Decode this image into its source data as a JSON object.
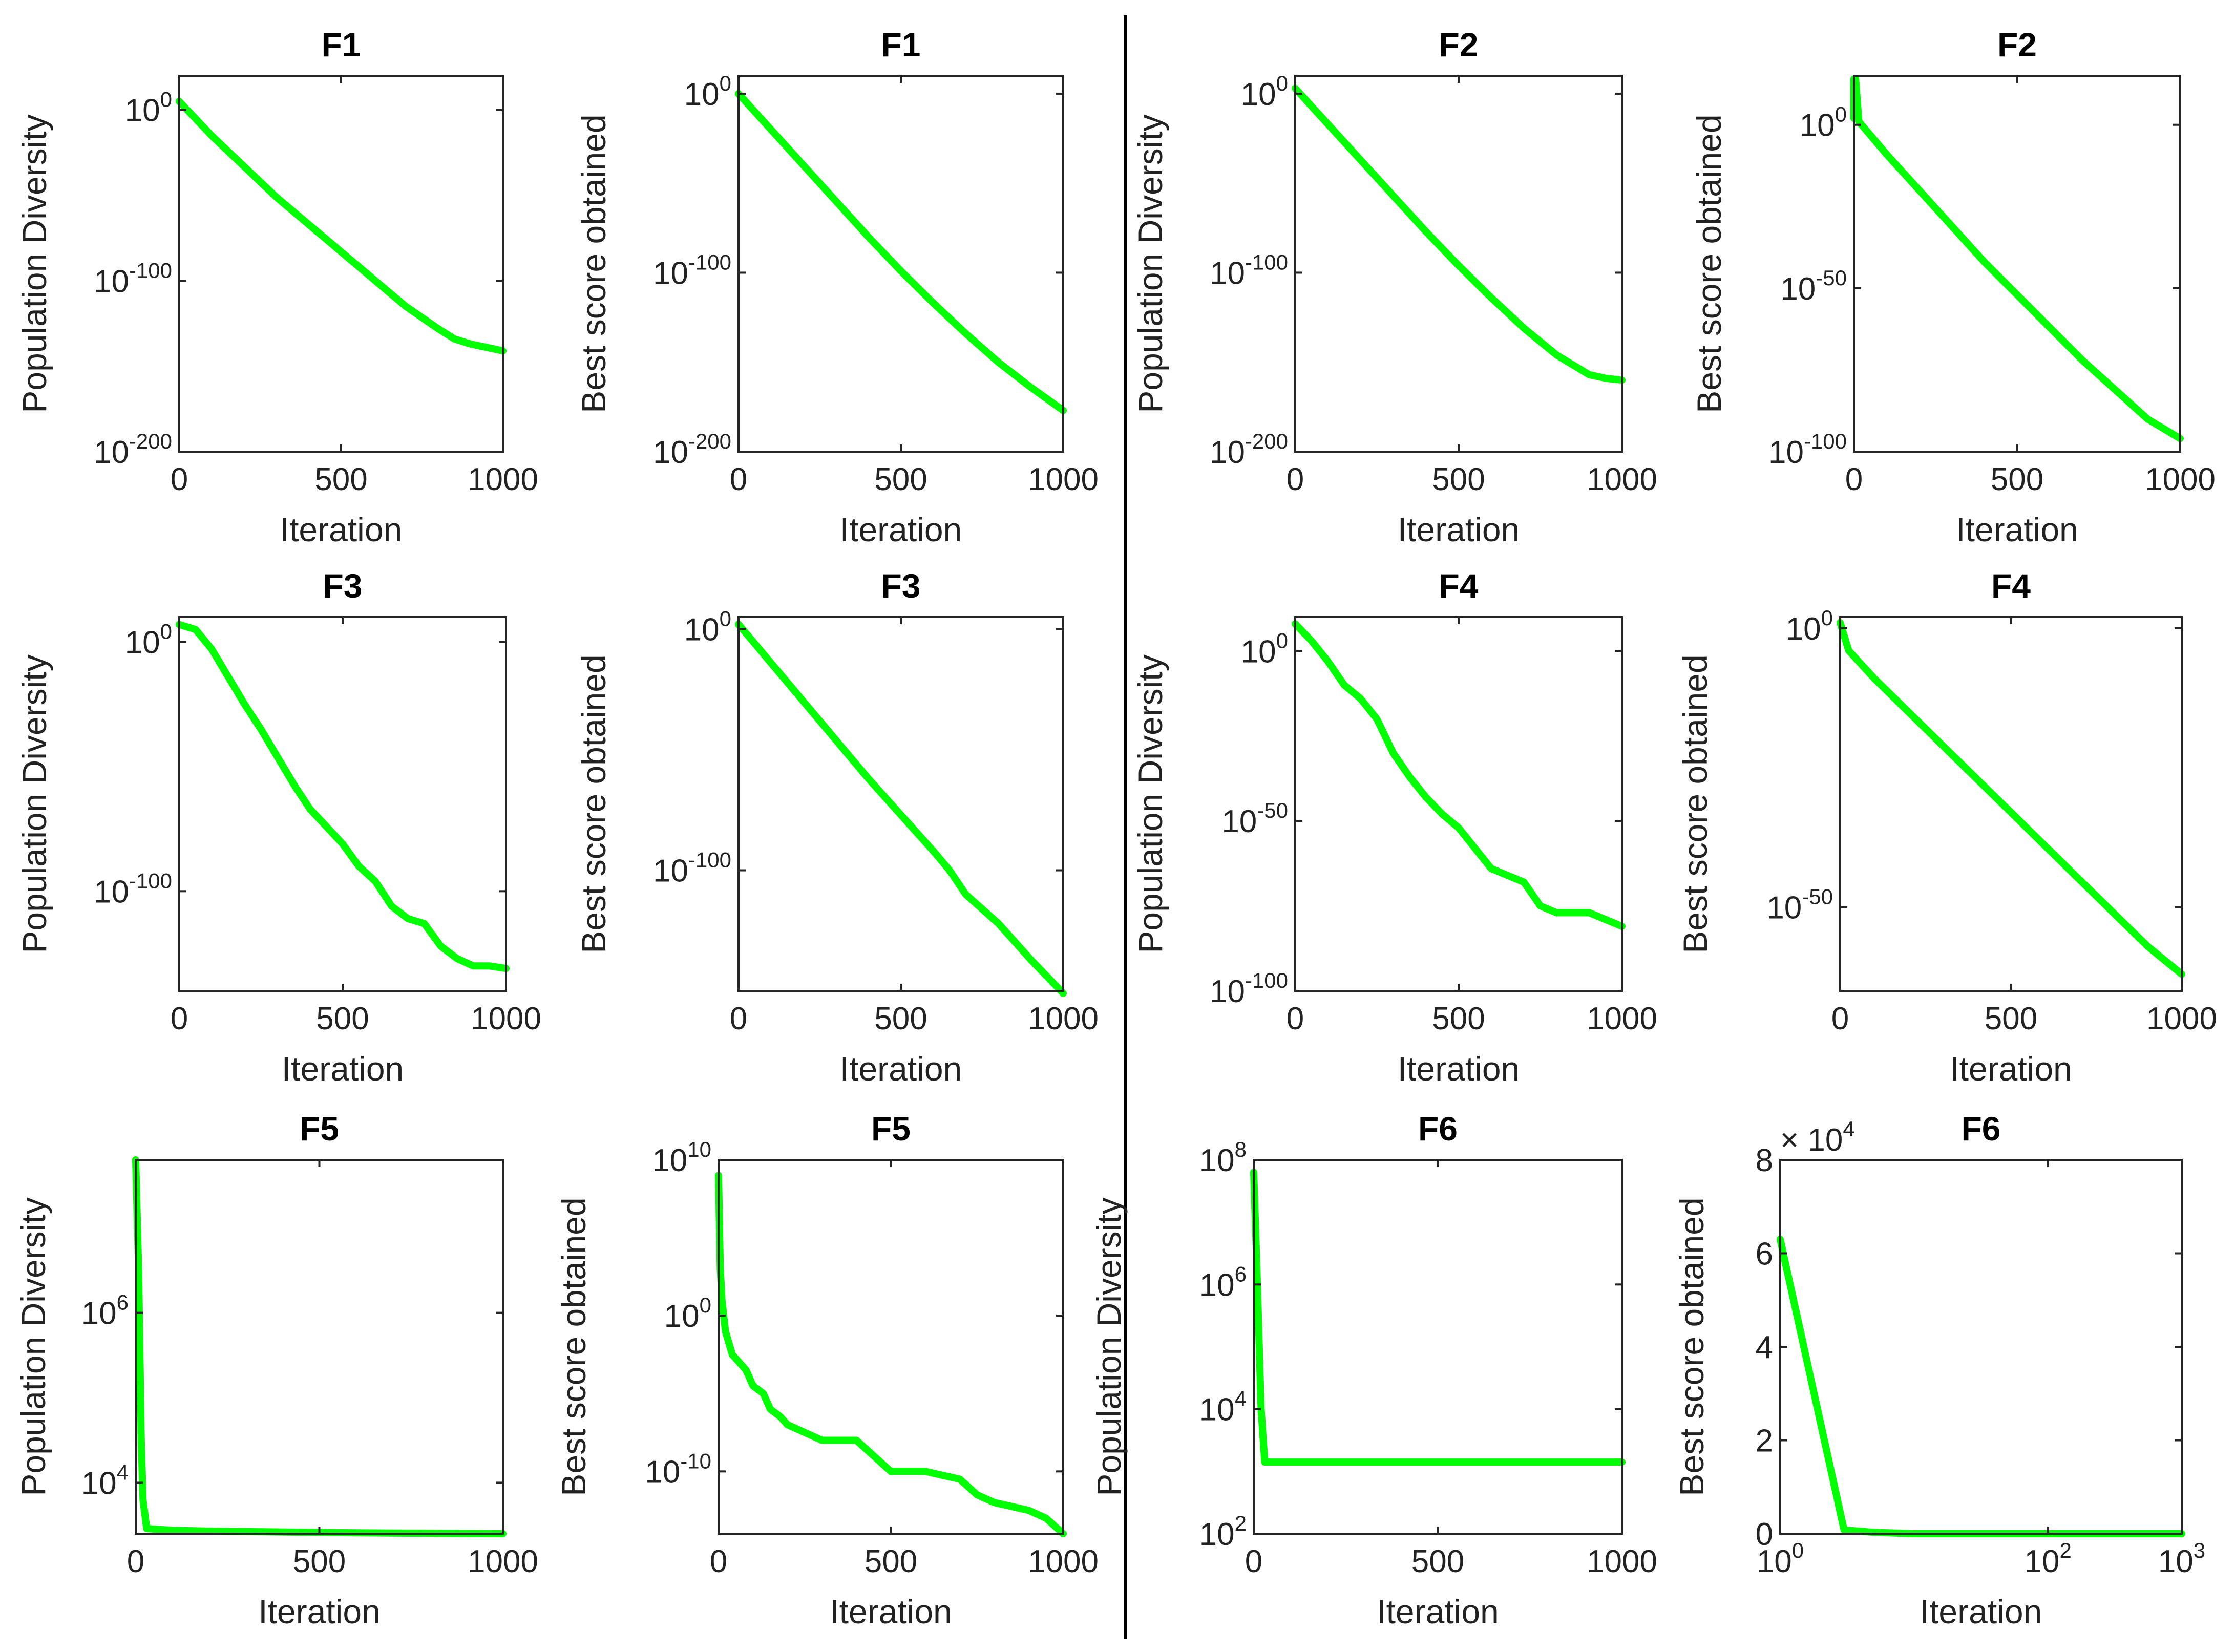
{
  "chart_data": [
    {
      "id": "p1",
      "type": "line",
      "title": "F1",
      "xlabel": "Iteration",
      "ylabel": "Population Diversity",
      "yscale": "log",
      "ylim_exp": [
        -200,
        20
      ],
      "ylim": [
        "1e-200",
        "1e20"
      ],
      "xlim": [
        0,
        1000
      ],
      "xticks": [
        {
          "v": 0,
          "t": "0"
        },
        {
          "v": 500,
          "t": "500"
        },
        {
          "v": 1000,
          "t": "1000"
        }
      ],
      "yticks": [
        {
          "e": -200,
          "b": "10",
          "p": "-200"
        },
        {
          "e": -100,
          "b": "10",
          "p": "-100"
        },
        {
          "e": 0,
          "b": "10",
          "p": "0"
        }
      ],
      "series": [
        {
          "name": "Population Diversity",
          "color": "#00ff00",
          "x": [
            0,
            100,
            200,
            300,
            400,
            500,
            600,
            700,
            800,
            850,
            900,
            950,
            1000
          ],
          "y_exp": [
            5,
            -15,
            -33,
            -51,
            -67,
            -83,
            -99,
            -115,
            -128,
            -134,
            -137,
            -139,
            -141
          ]
        }
      ]
    },
    {
      "id": "p2",
      "type": "line",
      "title": "F1",
      "xlabel": "Iteration",
      "ylabel": "Best score obtained",
      "yscale": "log",
      "ylim_exp": [
        -200,
        10
      ],
      "ylim": [
        "1e-200",
        "1e10"
      ],
      "xlim": [
        0,
        1000
      ],
      "xticks": [
        {
          "v": 0,
          "t": "0"
        },
        {
          "v": 500,
          "t": "500"
        },
        {
          "v": 1000,
          "t": "1000"
        }
      ],
      "yticks": [
        {
          "e": -200,
          "b": "10",
          "p": "-200"
        },
        {
          "e": -100,
          "b": "10",
          "p": "-100"
        },
        {
          "e": 0,
          "b": "10",
          "p": "0"
        }
      ],
      "series": [
        {
          "name": "Best score obtained",
          "color": "#00ff00",
          "x": [
            0,
            100,
            200,
            300,
            400,
            500,
            600,
            700,
            800,
            900,
            1000
          ],
          "y_exp": [
            0,
            -20,
            -40,
            -60,
            -80,
            -99,
            -117,
            -134,
            -150,
            -164,
            -177
          ]
        }
      ]
    },
    {
      "id": "p3",
      "type": "line",
      "title": "F2",
      "xlabel": "Iteration",
      "ylabel": "Population Diversity",
      "yscale": "log",
      "ylim_exp": [
        -200,
        10
      ],
      "ylim": [
        "1e-200",
        "1e10"
      ],
      "xlim": [
        0,
        1000
      ],
      "xticks": [
        {
          "v": 0,
          "t": "0"
        },
        {
          "v": 500,
          "t": "500"
        },
        {
          "v": 1000,
          "t": "1000"
        }
      ],
      "yticks": [
        {
          "e": -200,
          "b": "10",
          "p": "-200"
        },
        {
          "e": -100,
          "b": "10",
          "p": "-100"
        },
        {
          "e": 0,
          "b": "10",
          "p": "0"
        }
      ],
      "series": [
        {
          "name": "Population Diversity",
          "color": "#00ff00",
          "x": [
            0,
            100,
            200,
            300,
            400,
            500,
            600,
            700,
            800,
            900,
            950,
            1000
          ],
          "y_exp": [
            3,
            -17,
            -37,
            -57,
            -77,
            -96,
            -114,
            -131,
            -146,
            -157,
            -159,
            -160
          ]
        }
      ]
    },
    {
      "id": "p4",
      "type": "line",
      "title": "F2",
      "xlabel": "Iteration",
      "ylabel": "Best score obtained",
      "yscale": "log",
      "ylim_exp": [
        -100,
        15
      ],
      "ylim": [
        "1e-100",
        "1e15"
      ],
      "xlim": [
        0,
        1000
      ],
      "xticks": [
        {
          "v": 0,
          "t": "0"
        },
        {
          "v": 500,
          "t": "500"
        },
        {
          "v": 1000,
          "t": "1000"
        }
      ],
      "yticks": [
        {
          "e": -100,
          "b": "10",
          "p": "-100"
        },
        {
          "e": -50,
          "b": "10",
          "p": "-50"
        },
        {
          "e": 0,
          "b": "10",
          "p": "0"
        }
      ],
      "series": [
        {
          "name": "Best score obtained",
          "color": "#00ff00",
          "x": [
            0,
            0,
            5,
            5,
            15,
            100,
            200,
            300,
            400,
            500,
            600,
            700,
            800,
            900,
            1000
          ],
          "y_exp": [
            14,
            2,
            2,
            14,
            1,
            -9,
            -20,
            -31,
            -42,
            -52,
            -62,
            -72,
            -81,
            -90,
            -96
          ]
        }
      ]
    },
    {
      "id": "p5",
      "type": "line",
      "title": "F3",
      "xlabel": "Iteration",
      "ylabel": "Population Diversity",
      "yscale": "log",
      "ylim_exp": [
        -140,
        10
      ],
      "ylim": [
        "1e-140",
        "1e10"
      ],
      "xlim": [
        0,
        1000
      ],
      "xticks": [
        {
          "v": 0,
          "t": "0"
        },
        {
          "v": 500,
          "t": "500"
        },
        {
          "v": 1000,
          "t": "1000"
        }
      ],
      "yticks": [
        {
          "e": -100,
          "b": "10",
          "p": "-100"
        },
        {
          "e": 0,
          "b": "10",
          "p": "0"
        }
      ],
      "series": [
        {
          "name": "Population Diversity",
          "color": "#00ff00",
          "x": [
            0,
            50,
            100,
            150,
            200,
            250,
            300,
            350,
            400,
            450,
            500,
            550,
            600,
            650,
            700,
            750,
            800,
            850,
            900,
            950,
            1000
          ],
          "y_exp": [
            7,
            5,
            -3,
            -14,
            -25,
            -35,
            -46,
            -57,
            -67,
            -74,
            -81,
            -90,
            -96,
            -106,
            -111,
            -113,
            -122,
            -127,
            -130,
            -130,
            -131
          ]
        }
      ]
    },
    {
      "id": "p6",
      "type": "line",
      "title": "F3",
      "xlabel": "Iteration",
      "ylabel": "Best score obtained",
      "yscale": "log",
      "ylim_exp": [
        -150,
        5
      ],
      "ylim": [
        "1e-150",
        "1e5"
      ],
      "xlim": [
        0,
        1000
      ],
      "xticks": [
        {
          "v": 0,
          "t": "0"
        },
        {
          "v": 500,
          "t": "500"
        },
        {
          "v": 1000,
          "t": "1000"
        }
      ],
      "yticks": [
        {
          "e": -100,
          "b": "10",
          "p": "-100"
        },
        {
          "e": 0,
          "b": "10",
          "p": "0"
        }
      ],
      "series": [
        {
          "name": "Best score obtained",
          "color": "#00ff00",
          "x": [
            0,
            100,
            200,
            300,
            400,
            500,
            600,
            650,
            700,
            800,
            900,
            1000
          ],
          "y_exp": [
            2,
            -14,
            -30,
            -46,
            -62,
            -77,
            -92,
            -100,
            -110,
            -122,
            -137,
            -151
          ]
        }
      ]
    },
    {
      "id": "p7",
      "type": "line",
      "title": "F4",
      "xlabel": "Iteration",
      "ylabel": "Population Diversity",
      "yscale": "log",
      "ylim_exp": [
        -100,
        10
      ],
      "ylim": [
        "1e-100",
        "1e10"
      ],
      "xlim": [
        0,
        1000
      ],
      "xticks": [
        {
          "v": 0,
          "t": "0"
        },
        {
          "v": 500,
          "t": "500"
        },
        {
          "v": 1000,
          "t": "1000"
        }
      ],
      "yticks": [
        {
          "e": -100,
          "b": "10",
          "p": "-100"
        },
        {
          "e": -50,
          "b": "10",
          "p": "-50"
        },
        {
          "e": 0,
          "b": "10",
          "p": "0"
        }
      ],
      "series": [
        {
          "name": "Population Diversity",
          "color": "#00ff00",
          "x": [
            0,
            50,
            100,
            150,
            200,
            250,
            300,
            350,
            400,
            450,
            500,
            550,
            600,
            650,
            700,
            750,
            800,
            850,
            900,
            950,
            1000
          ],
          "y_exp": [
            8,
            3,
            -3,
            -10,
            -14,
            -20,
            -30,
            -37,
            -43,
            -48,
            -52,
            -58,
            -64,
            -66,
            -68,
            -75,
            -77,
            -77,
            -77,
            -79,
            -81
          ]
        }
      ]
    },
    {
      "id": "p8",
      "type": "line",
      "title": "F4",
      "xlabel": "Iteration",
      "ylabel": "Best score obtained",
      "yscale": "log",
      "ylim_exp": [
        -65,
        2
      ],
      "ylim": [
        "1e-65",
        "1e2"
      ],
      "xlim": [
        0,
        1000
      ],
      "xticks": [
        {
          "v": 0,
          "t": "0"
        },
        {
          "v": 500,
          "t": "500"
        },
        {
          "v": 1000,
          "t": "1000"
        }
      ],
      "yticks": [
        {
          "e": -50,
          "b": "10",
          "p": "-50"
        },
        {
          "e": 0,
          "b": "10",
          "p": "0"
        }
      ],
      "series": [
        {
          "name": "Best score obtained",
          "color": "#00ff00",
          "x": [
            0,
            25,
            100,
            200,
            300,
            400,
            500,
            600,
            700,
            800,
            900,
            1000
          ],
          "y_exp": [
            1,
            -4,
            -9,
            -15,
            -21,
            -27,
            -33,
            -39,
            -45,
            -51,
            -57,
            -62
          ]
        }
      ]
    },
    {
      "id": "p9",
      "type": "line",
      "title": "F5",
      "xlabel": "Iteration",
      "ylabel": "Population Diversity",
      "yscale": "log",
      "ylim_exp": [
        3.4,
        7.8
      ],
      "ylim": [
        "2.5e3",
        "6.3e7"
      ],
      "xlim": [
        0,
        1000
      ],
      "xticks": [
        {
          "v": 0,
          "t": "0"
        },
        {
          "v": 500,
          "t": "500"
        },
        {
          "v": 1000,
          "t": "1000"
        }
      ],
      "yticks": [
        {
          "e": 4,
          "b": "10",
          "p": "4"
        },
        {
          "e": 6,
          "b": "10",
          "p": "6"
        }
      ],
      "series": [
        {
          "name": "Population Diversity",
          "color": "#00ff00",
          "x": [
            0,
            8,
            15,
            20,
            30,
            100,
            200,
            400,
            600,
            800,
            1000
          ],
          "y_exp": [
            7.8,
            6.5,
            4.5,
            3.8,
            3.46,
            3.44,
            3.43,
            3.42,
            3.41,
            3.405,
            3.4
          ]
        }
      ]
    },
    {
      "id": "p10",
      "type": "line",
      "title": "F5",
      "xlabel": "Iteration",
      "ylabel": "Best score obtained",
      "yscale": "log",
      "ylim_exp": [
        -14,
        10
      ],
      "ylim": [
        "1e-14",
        "1e10"
      ],
      "xlim": [
        0,
        1000
      ],
      "xticks": [
        {
          "v": 0,
          "t": "0"
        },
        {
          "v": 500,
          "t": "500"
        },
        {
          "v": 1000,
          "t": "1000"
        }
      ],
      "yticks": [
        {
          "e": -10,
          "b": "10",
          "p": "-10"
        },
        {
          "e": 0,
          "b": "10",
          "p": "0"
        },
        {
          "e": 10,
          "b": "10",
          "p": "10"
        }
      ],
      "series": [
        {
          "name": "Best score obtained",
          "color": "#00ff00",
          "x": [
            0,
            5,
            10,
            20,
            40,
            60,
            80,
            100,
            130,
            150,
            180,
            200,
            250,
            300,
            400,
            450,
            500,
            600,
            700,
            750,
            800,
            900,
            950,
            1000
          ],
          "y_exp": [
            9,
            3,
            1,
            -1,
            -2.5,
            -3,
            -3.5,
            -4.5,
            -5,
            -6,
            -6.5,
            -7,
            -7.5,
            -8,
            -8,
            -9,
            -10,
            -10,
            -10.5,
            -11.5,
            -12,
            -12.5,
            -13,
            -14
          ]
        }
      ]
    },
    {
      "id": "p11",
      "type": "line",
      "title": "F6",
      "xlabel": "Iteration",
      "ylabel": "Population Diversity",
      "yscale": "log",
      "ylim_exp": [
        2,
        8
      ],
      "ylim": [
        "1e2",
        "1e8"
      ],
      "xlim": [
        0,
        1000
      ],
      "xticks": [
        {
          "v": 0,
          "t": "0"
        },
        {
          "v": 500,
          "t": "500"
        },
        {
          "v": 1000,
          "t": "1000"
        }
      ],
      "yticks": [
        {
          "e": 2,
          "b": "10",
          "p": "2"
        },
        {
          "e": 4,
          "b": "10",
          "p": "4"
        },
        {
          "e": 6,
          "b": "10",
          "p": "6"
        },
        {
          "e": 8,
          "b": "10",
          "p": "8"
        }
      ],
      "series": [
        {
          "name": "Population Diversity",
          "color": "#00ff00",
          "x": [
            0,
            10,
            20,
            30,
            1000
          ],
          "y_exp": [
            7.8,
            6,
            4,
            3.15,
            3.15
          ]
        }
      ]
    },
    {
      "id": "p12",
      "type": "line",
      "title": "F6",
      "xlabel": "Iteration",
      "ylabel": "Best score obtained",
      "xscale": "log",
      "xlim_exp": [
        0,
        3
      ],
      "xlim": [
        1,
        1000
      ],
      "ylim": [
        0,
        80000
      ],
      "y_multiplier": "×10^4",
      "xticks": [
        {
          "e": 0,
          "b": "10",
          "p": "0"
        },
        {
          "e": 2,
          "b": "10",
          "p": "2"
        },
        {
          "e": 3,
          "b": "10",
          "p": "3"
        }
      ],
      "yticks": [
        {
          "v": 0,
          "t": "0"
        },
        {
          "v": 20000,
          "t": "2"
        },
        {
          "v": 40000,
          "t": "4"
        },
        {
          "v": 60000,
          "t": "6"
        },
        {
          "v": 80000,
          "t": "8"
        }
      ],
      "exponent_label": {
        "base": "× 10",
        "power": "4"
      },
      "series": [
        {
          "name": "Best score obtained",
          "color": "#00ff00",
          "x": [
            1,
            3,
            5,
            10,
            100,
            1000
          ],
          "y": [
            63000,
            800,
            300,
            0,
            0,
            0
          ]
        }
      ]
    }
  ]
}
